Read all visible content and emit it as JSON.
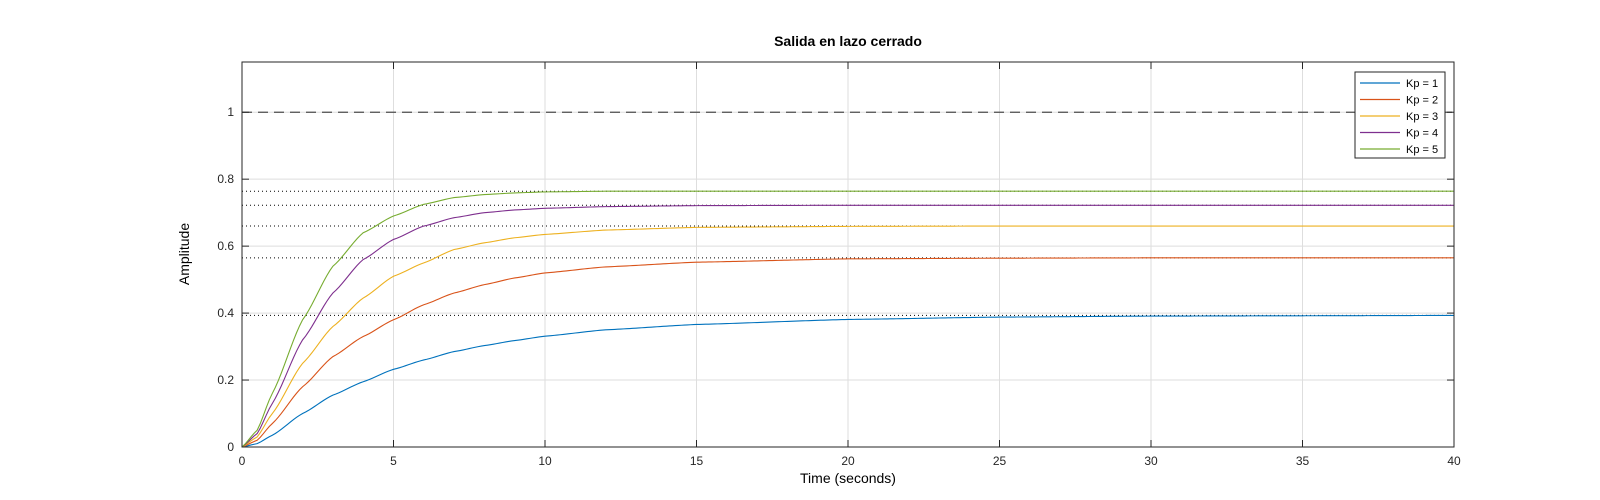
{
  "chart_data": {
    "type": "line",
    "title": "Salida en lazo cerrado",
    "xlabel": "Time (seconds)",
    "ylabel": "Amplitude",
    "xlim": [
      0,
      40
    ],
    "ylim": [
      0,
      1.15
    ],
    "xticks": [
      0,
      5,
      10,
      15,
      20,
      25,
      30,
      35,
      40
    ],
    "yticks": [
      0,
      0.2,
      0.4,
      0.6,
      0.8,
      1
    ],
    "grid": true,
    "legend_position": "top-right",
    "reference_line": {
      "y": 1,
      "style": "dashed"
    },
    "series": [
      {
        "name": "Kp = 1",
        "color": "#0072BD",
        "final_value": 0.393,
        "points": [
          [
            0,
            0
          ],
          [
            0.5,
            0.01
          ],
          [
            1,
            0.035
          ],
          [
            2,
            0.1
          ],
          [
            3,
            0.155
          ],
          [
            4,
            0.195
          ],
          [
            5,
            0.232
          ],
          [
            6,
            0.26
          ],
          [
            7,
            0.285
          ],
          [
            8,
            0.303
          ],
          [
            9,
            0.318
          ],
          [
            10,
            0.331
          ],
          [
            12,
            0.35
          ],
          [
            15,
            0.366
          ],
          [
            20,
            0.381
          ],
          [
            25,
            0.388
          ],
          [
            30,
            0.391
          ],
          [
            35,
            0.392
          ],
          [
            40,
            0.393
          ]
        ]
      },
      {
        "name": "Kp = 2",
        "color": "#D95319",
        "final_value": 0.565,
        "points": [
          [
            0,
            0
          ],
          [
            0.5,
            0.02
          ],
          [
            1,
            0.07
          ],
          [
            2,
            0.18
          ],
          [
            3,
            0.27
          ],
          [
            4,
            0.33
          ],
          [
            5,
            0.38
          ],
          [
            6,
            0.425
          ],
          [
            7,
            0.46
          ],
          [
            8,
            0.485
          ],
          [
            9,
            0.505
          ],
          [
            10,
            0.52
          ],
          [
            12,
            0.538
          ],
          [
            15,
            0.552
          ],
          [
            20,
            0.562
          ],
          [
            25,
            0.564
          ],
          [
            30,
            0.565
          ],
          [
            40,
            0.565
          ]
        ]
      },
      {
        "name": "Kp = 3",
        "color": "#EDB120",
        "final_value": 0.66,
        "points": [
          [
            0,
            0
          ],
          [
            0.5,
            0.03
          ],
          [
            1,
            0.1
          ],
          [
            2,
            0.25
          ],
          [
            3,
            0.36
          ],
          [
            4,
            0.445
          ],
          [
            5,
            0.51
          ],
          [
            6,
            0.55
          ],
          [
            7,
            0.59
          ],
          [
            8,
            0.61
          ],
          [
            9,
            0.625
          ],
          [
            10,
            0.635
          ],
          [
            12,
            0.648
          ],
          [
            15,
            0.656
          ],
          [
            20,
            0.659
          ],
          [
            25,
            0.66
          ],
          [
            40,
            0.66
          ]
        ]
      },
      {
        "name": "Kp = 4",
        "color": "#7E2F8E",
        "final_value": 0.722,
        "points": [
          [
            0,
            0
          ],
          [
            0.5,
            0.04
          ],
          [
            1,
            0.13
          ],
          [
            2,
            0.32
          ],
          [
            3,
            0.46
          ],
          [
            4,
            0.56
          ],
          [
            5,
            0.62
          ],
          [
            6,
            0.66
          ],
          [
            7,
            0.685
          ],
          [
            8,
            0.7
          ],
          [
            9,
            0.708
          ],
          [
            10,
            0.713
          ],
          [
            12,
            0.718
          ],
          [
            15,
            0.721
          ],
          [
            20,
            0.722
          ],
          [
            40,
            0.722
          ]
        ]
      },
      {
        "name": "Kp = 5",
        "color": "#77AC30",
        "final_value": 0.764,
        "points": [
          [
            0,
            0
          ],
          [
            0.5,
            0.05
          ],
          [
            1,
            0.16
          ],
          [
            2,
            0.38
          ],
          [
            3,
            0.54
          ],
          [
            4,
            0.64
          ],
          [
            5,
            0.69
          ],
          [
            6,
            0.725
          ],
          [
            7,
            0.745
          ],
          [
            8,
            0.754
          ],
          [
            9,
            0.759
          ],
          [
            10,
            0.762
          ],
          [
            12,
            0.764
          ],
          [
            15,
            0.764
          ],
          [
            40,
            0.764
          ]
        ]
      }
    ]
  }
}
